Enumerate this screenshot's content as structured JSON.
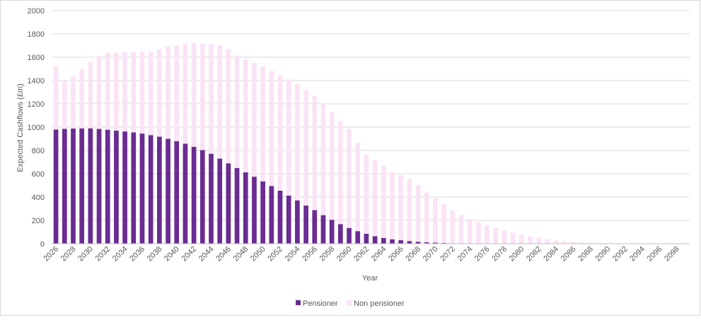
{
  "chart_data": {
    "type": "bar",
    "stacked": true,
    "title": "",
    "xlabel": "Year",
    "ylabel": "Expected Cashflows (£m)",
    "ylim": [
      0,
      2000
    ],
    "yticks": [
      0,
      200,
      400,
      600,
      800,
      1000,
      1200,
      1400,
      1600,
      1800,
      2000
    ],
    "grid": true,
    "legend_position": "bottom",
    "x_start": 2026,
    "x_end": 2099,
    "x_tick_labels": [
      "2026",
      "2028",
      "2030",
      "2032",
      "2034",
      "2036",
      "2038",
      "2040",
      "2042",
      "2044",
      "2046",
      "2048",
      "2050",
      "2052",
      "2054",
      "2056",
      "2058",
      "2060",
      "2062",
      "2064",
      "2066",
      "2068",
      "2070",
      "2072",
      "2074",
      "2076",
      "2078",
      "2080",
      "2082",
      "2084",
      "2086",
      "2088",
      "2090",
      "2092",
      "2094",
      "2096",
      "2098"
    ],
    "colors": {
      "Pensioner": "#6a2c91",
      "Non pensioner": "#fbe3f6"
    },
    "series": [
      {
        "name": "Pensioner",
        "values": [
          980,
          985,
          988,
          990,
          990,
          985,
          978,
          970,
          963,
          955,
          945,
          932,
          918,
          900,
          880,
          858,
          832,
          803,
          772,
          730,
          690,
          650,
          612,
          575,
          535,
          495,
          455,
          413,
          372,
          328,
          288,
          245,
          205,
          168,
          135,
          108,
          85,
          65,
          50,
          38,
          30,
          23,
          17,
          12,
          9,
          6,
          4,
          3,
          2,
          1,
          1,
          1,
          0,
          0,
          0,
          0,
          0,
          0,
          0,
          0,
          0,
          0,
          0,
          0,
          0,
          0,
          0,
          0,
          0,
          0,
          0,
          0,
          0,
          0
        ]
      },
      {
        "name": "Non pensioner",
        "values": [
          540,
          410,
          450,
          510,
          570,
          625,
          660,
          668,
          680,
          690,
          705,
          718,
          750,
          790,
          822,
          860,
          888,
          915,
          945,
          975,
          980,
          965,
          970,
          977,
          985,
          988,
          990,
          997,
          1000,
          990,
          982,
          960,
          922,
          887,
          848,
          758,
          680,
          650,
          620,
          580,
          558,
          530,
          486,
          428,
          380,
          334,
          282,
          245,
          210,
          185,
          160,
          135,
          115,
          95,
          78,
          62,
          50,
          38,
          28,
          20,
          15,
          11,
          8,
          6,
          4,
          3,
          2,
          2,
          1,
          1,
          1,
          0,
          0,
          0
        ]
      }
    ]
  }
}
